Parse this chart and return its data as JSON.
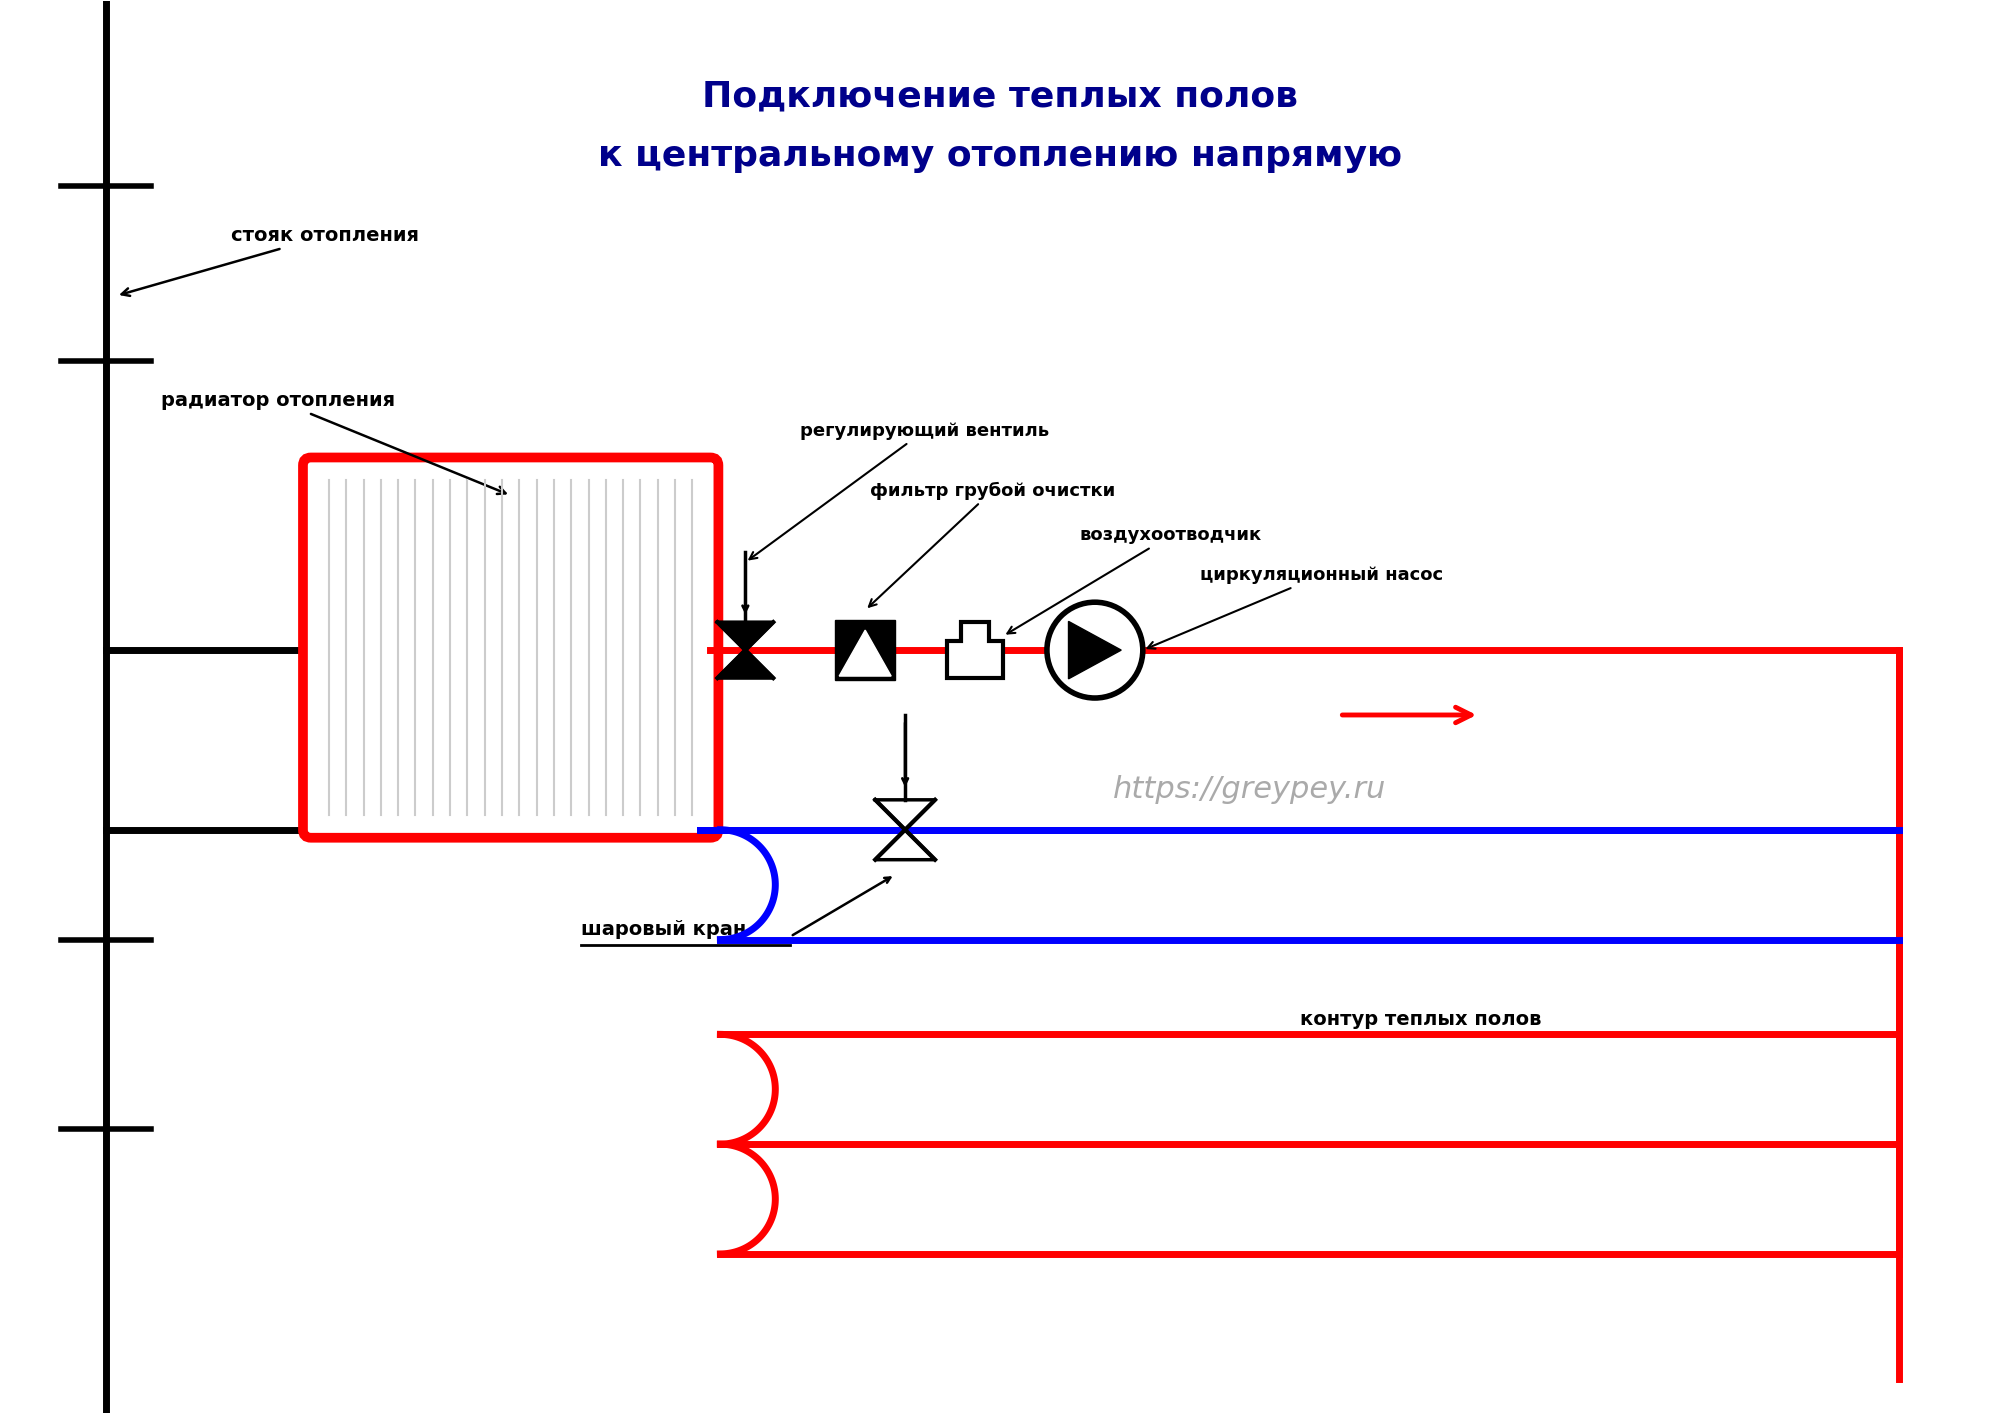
{
  "title_line1": "Подключение теплых полов",
  "title_line2": "к центральному отоплению напрямую",
  "title_color": "#00008B",
  "title_fontsize": 26,
  "bg_color": "#FFFFFF",
  "label_stoyak": "стояк отопления",
  "label_radiator": "радиатор отопления",
  "label_ventil": "регулирующий вентиль",
  "label_filter": "фильтр грубой очистки",
  "label_air": "воздухоотводчик",
  "label_pump": "циркуляционный насос",
  "label_kran": "шаровый кран",
  "label_kontur": "контур теплых полов",
  "watermark": "https://greypey.ru",
  "red": "#FF0000",
  "blue": "#0000FF",
  "black": "#000000",
  "gray": "#AAAAAA",
  "lw_pipe": 5,
  "lw_black": 5,
  "lw_border": 6
}
